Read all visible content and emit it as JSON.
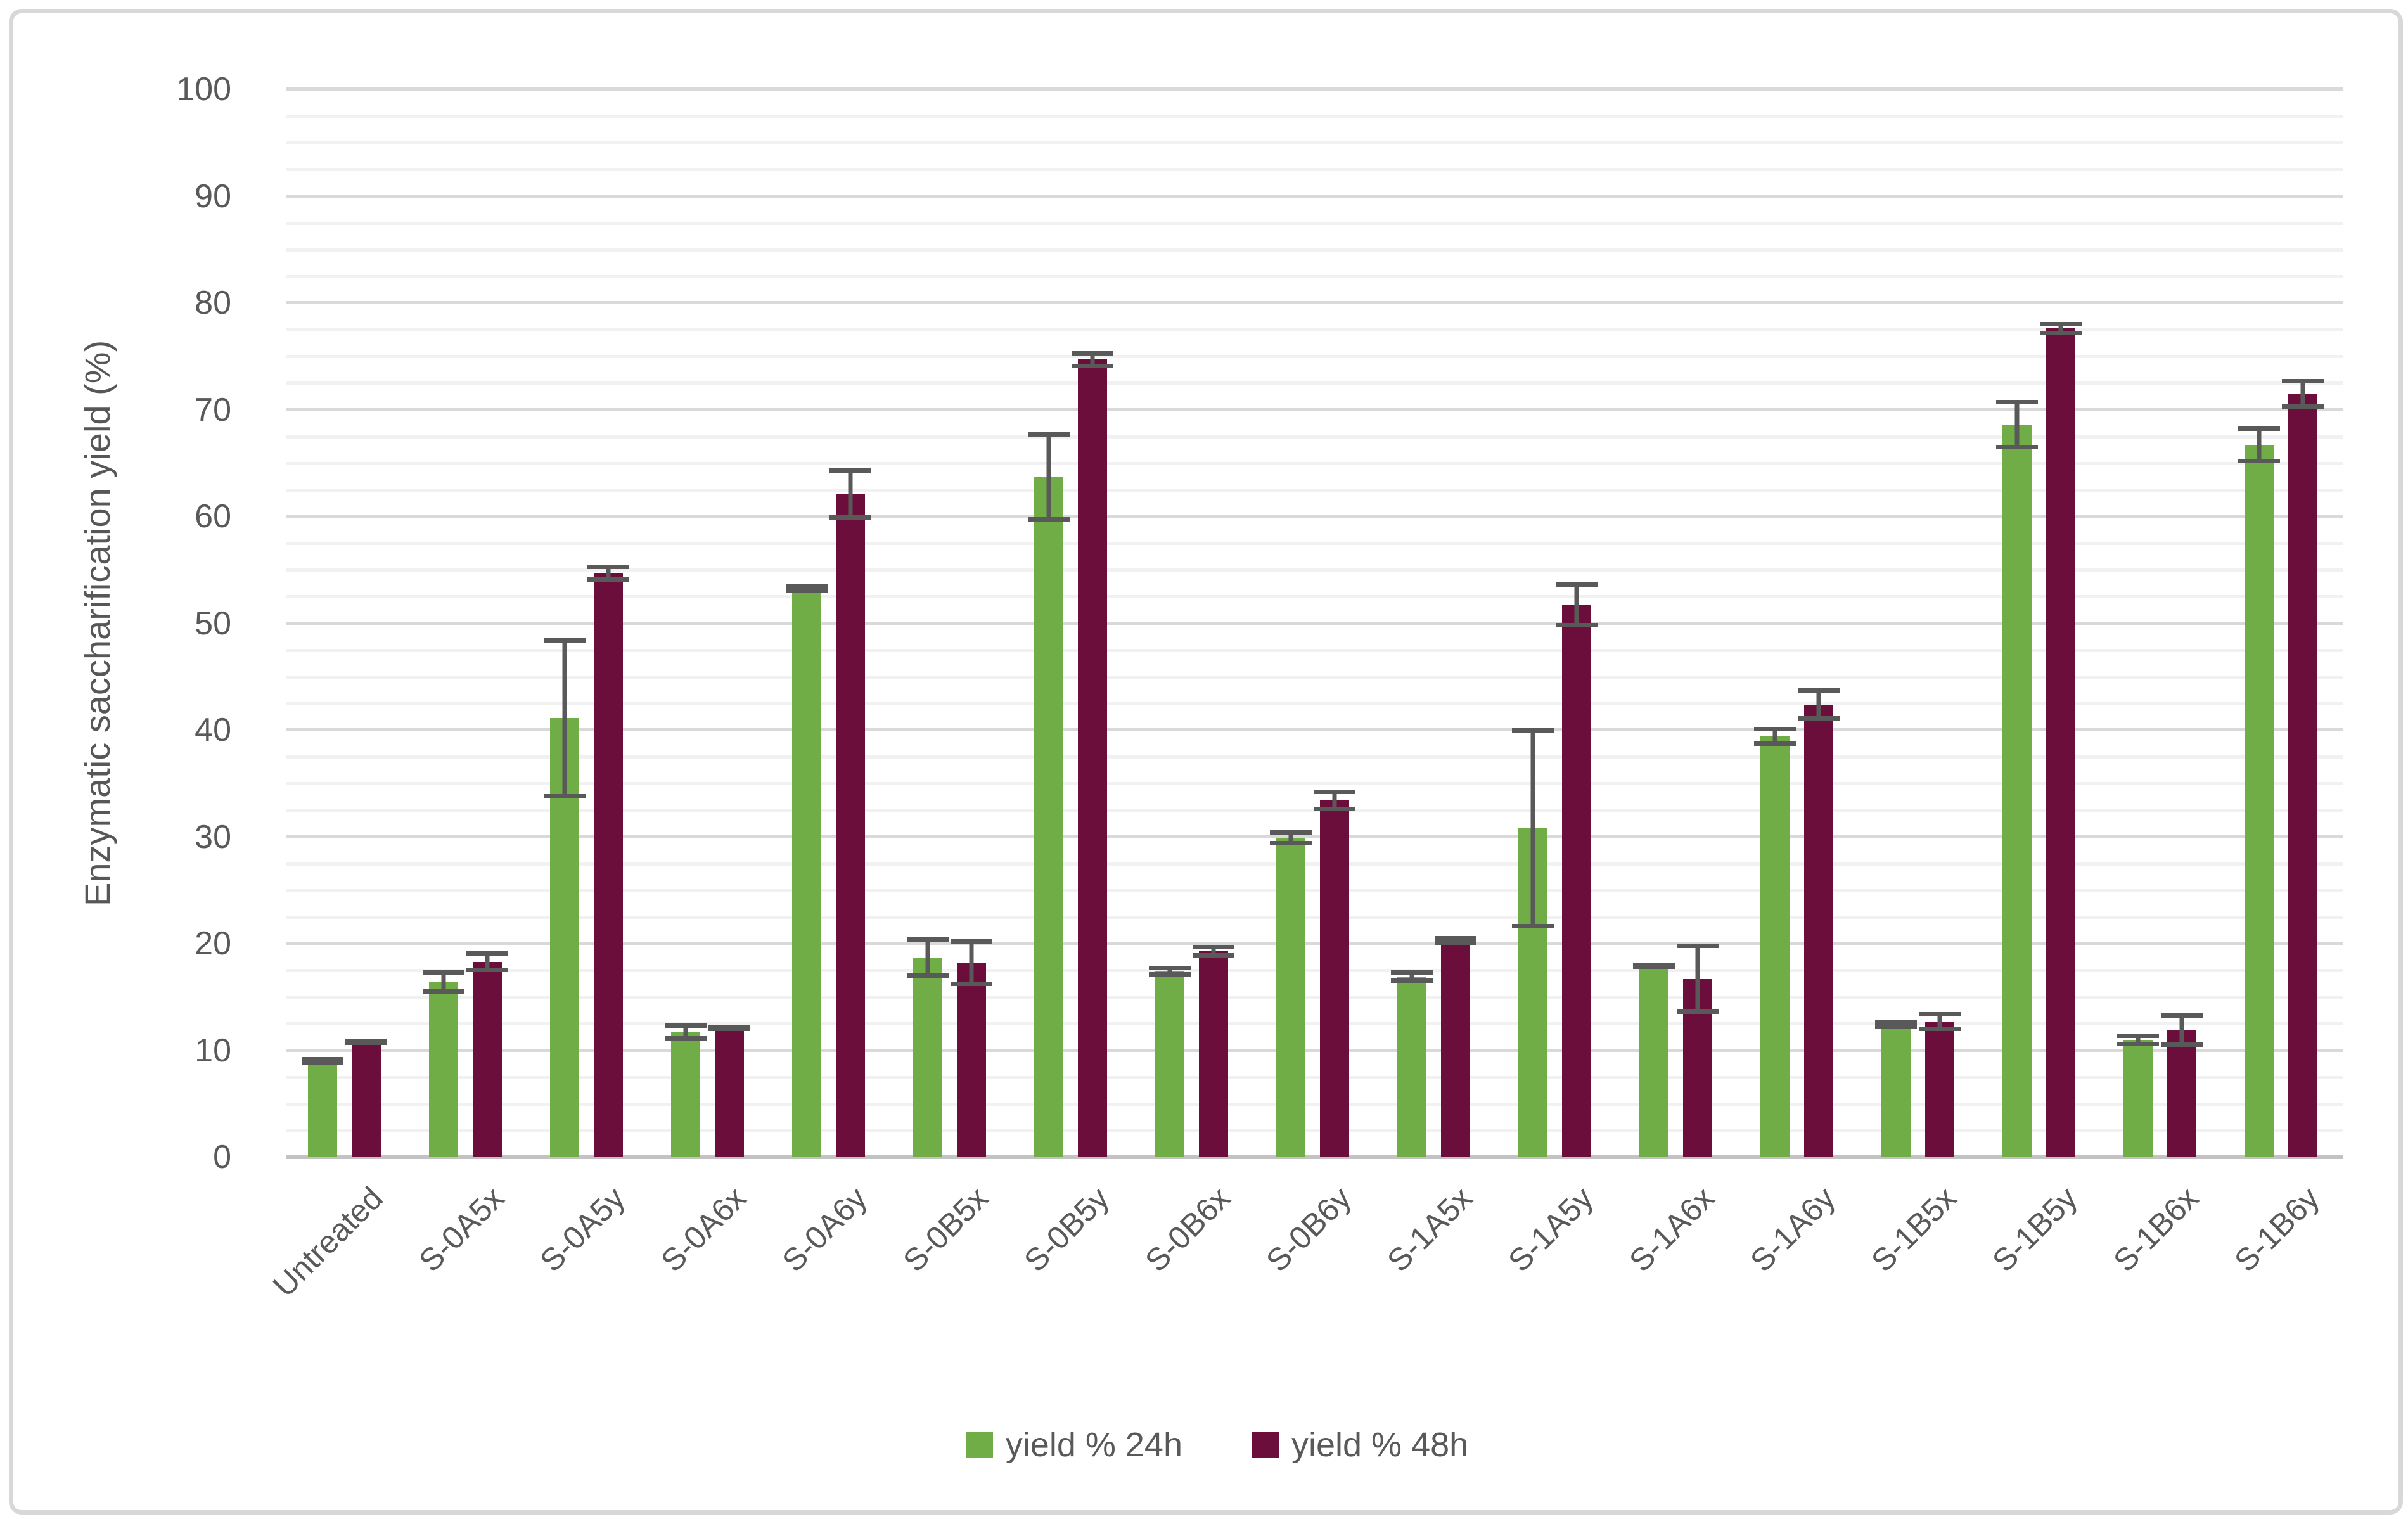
{
  "figure": {
    "background": "#ffffff",
    "border_color": "#d8d8d8"
  },
  "colors": {
    "series_24h": "#70ad47",
    "series_48h": "#6c0e3c",
    "major_gridline": "#d9d9d9",
    "minor_gridline": "#f1f1f1",
    "axis_line": "#c3c3c3",
    "error_bar": "#595959",
    "text": "#595959"
  },
  "chart_data": {
    "type": "bar",
    "title": "",
    "xlabel": "",
    "ylabel": "Enzymatic saccharification yield (%)",
    "ylim": [
      0,
      100
    ],
    "ytick_step": 10,
    "minor_gridline_step": 2.5,
    "grid": true,
    "legend_position": "bottom",
    "error_bars": true,
    "categories": [
      "Untreated",
      "S-0A5x",
      "S-0A5y",
      "S-0A6x",
      "S-0A6y",
      "S-0B5x",
      "S-0B5y",
      "S-0B6x",
      "S-0B6y",
      "S-1A5x",
      "S-1A5y",
      "S-1A6x",
      "S-1A6y",
      "S-1B5x",
      "S-1B5y",
      "S-1B6x",
      "S-1B6y"
    ],
    "yticks": [
      0,
      10,
      20,
      30,
      40,
      50,
      60,
      70,
      80,
      90,
      100
    ],
    "series": [
      {
        "name": "yield % 24h",
        "color": "#70ad47",
        "values": [
          9.0,
          16.4,
          41.1,
          11.7,
          53.3,
          18.7,
          63.7,
          17.4,
          29.9,
          16.9,
          30.8,
          17.9,
          39.4,
          12.4,
          68.6,
          11.0,
          66.7
        ],
        "errors": [
          0.4,
          1.1,
          7.5,
          0.8,
          0.4,
          1.9,
          4.2,
          0.5,
          0.7,
          0.6,
          9.4,
          0.3,
          0.9,
          0.4,
          2.3,
          0.6,
          1.7
        ]
      },
      {
        "name": "yield % 48h",
        "color": "#6c0e3c",
        "values": [
          10.8,
          18.3,
          54.7,
          12.1,
          62.1,
          18.2,
          74.7,
          19.3,
          33.4,
          20.3,
          51.7,
          16.7,
          42.4,
          12.7,
          77.6,
          11.9,
          71.5
        ],
        "errors": [
          0.3,
          1.0,
          0.8,
          0.3,
          2.4,
          2.2,
          0.8,
          0.6,
          1.0,
          0.4,
          2.1,
          3.3,
          1.5,
          0.9,
          0.6,
          1.6,
          1.4
        ]
      }
    ]
  }
}
